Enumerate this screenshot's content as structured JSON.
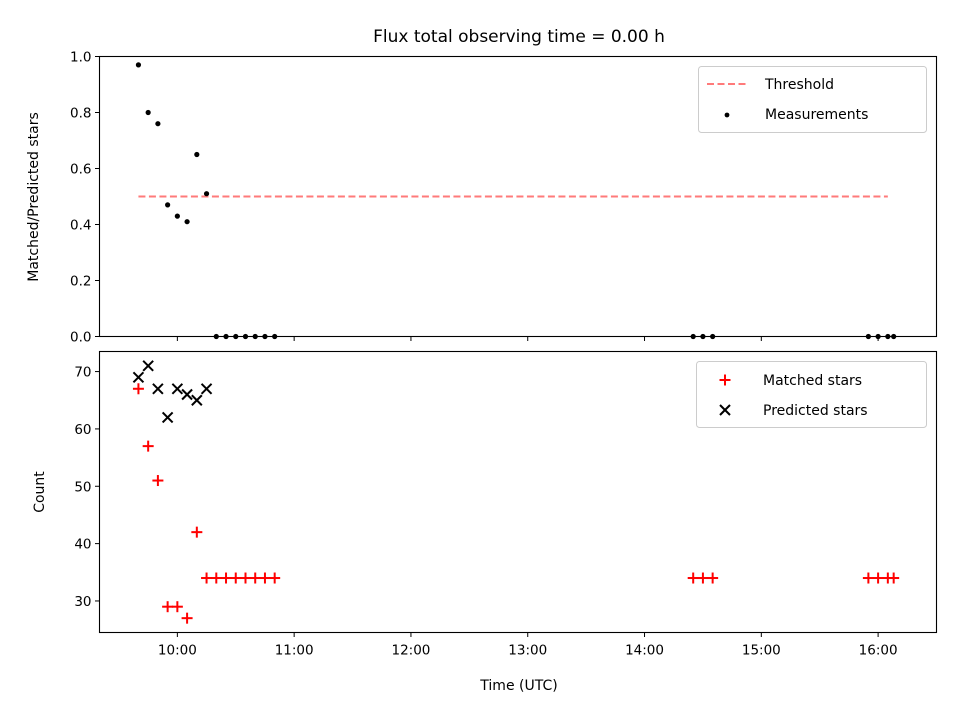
{
  "title": "Flux total observing time = 0.00 h",
  "colors": {
    "threshold": "#ff7a7a",
    "measurements": "#000000",
    "matched": "#ff0000",
    "predicted": "#000000"
  },
  "chart_data": [
    {
      "type": "scatter",
      "panel": "top",
      "title": "Flux total observing time = 0.00 h",
      "xlabel": "",
      "ylabel": "Matched/Predicted stars",
      "x_unit": "time of day (UTC)",
      "xlim": [
        "09:20",
        "16:30"
      ],
      "ylim": [
        0.0,
        1.0
      ],
      "x_ticks": [
        "10:00",
        "11:00",
        "12:00",
        "13:00",
        "14:00",
        "15:00",
        "16:00"
      ],
      "y_ticks": [
        "0.0",
        "0.2",
        "0.4",
        "0.6",
        "0.8",
        "1.0"
      ],
      "legend": "top-right",
      "threshold": {
        "name": "Threshold",
        "y": 0.5,
        "x": [
          "09:40",
          "16:05"
        ],
        "style": "dashed"
      },
      "series": [
        {
          "name": "Measurements",
          "marker": "dot",
          "points": [
            {
              "x": "09:40",
              "y": 0.97
            },
            {
              "x": "09:45",
              "y": 0.8
            },
            {
              "x": "09:50",
              "y": 0.76
            },
            {
              "x": "09:55",
              "y": 0.47
            },
            {
              "x": "10:00",
              "y": 0.43
            },
            {
              "x": "10:05",
              "y": 0.41
            },
            {
              "x": "10:10",
              "y": 0.65
            },
            {
              "x": "10:15",
              "y": 0.51
            },
            {
              "x": "10:20",
              "y": 0.0
            },
            {
              "x": "10:25",
              "y": 0.0
            },
            {
              "x": "10:30",
              "y": 0.0
            },
            {
              "x": "10:35",
              "y": 0.0
            },
            {
              "x": "10:40",
              "y": 0.0
            },
            {
              "x": "10:45",
              "y": 0.0
            },
            {
              "x": "10:50",
              "y": 0.0
            },
            {
              "x": "14:25",
              "y": 0.0
            },
            {
              "x": "14:30",
              "y": 0.0
            },
            {
              "x": "14:35",
              "y": 0.0
            },
            {
              "x": "15:55",
              "y": 0.0
            },
            {
              "x": "16:00",
              "y": 0.0
            },
            {
              "x": "16:05",
              "y": 0.0
            },
            {
              "x": "16:08",
              "y": 0.0
            }
          ]
        }
      ]
    },
    {
      "type": "scatter",
      "panel": "bottom",
      "xlabel": "Time (UTC)",
      "ylabel": "Count",
      "x_unit": "time of day (UTC)",
      "xlim": [
        "09:20",
        "16:30"
      ],
      "ylim": [
        24.5,
        73.5
      ],
      "x_ticks": [
        "10:00",
        "11:00",
        "12:00",
        "13:00",
        "14:00",
        "15:00",
        "16:00"
      ],
      "y_ticks": [
        "30",
        "40",
        "50",
        "60",
        "70"
      ],
      "legend": "top-right",
      "series": [
        {
          "name": "Matched stars",
          "marker": "plus",
          "points": [
            {
              "x": "09:40",
              "y": 67
            },
            {
              "x": "09:45",
              "y": 57
            },
            {
              "x": "09:50",
              "y": 51
            },
            {
              "x": "09:55",
              "y": 29
            },
            {
              "x": "10:00",
              "y": 29
            },
            {
              "x": "10:05",
              "y": 27
            },
            {
              "x": "10:10",
              "y": 42
            },
            {
              "x": "10:15",
              "y": 34
            },
            {
              "x": "10:20",
              "y": 34
            },
            {
              "x": "10:25",
              "y": 34
            },
            {
              "x": "10:30",
              "y": 34
            },
            {
              "x": "10:35",
              "y": 34
            },
            {
              "x": "10:40",
              "y": 34
            },
            {
              "x": "10:45",
              "y": 34
            },
            {
              "x": "10:50",
              "y": 34
            },
            {
              "x": "14:25",
              "y": 34
            },
            {
              "x": "14:30",
              "y": 34
            },
            {
              "x": "14:35",
              "y": 34
            },
            {
              "x": "15:55",
              "y": 34
            },
            {
              "x": "16:00",
              "y": 34
            },
            {
              "x": "16:05",
              "y": 34
            },
            {
              "x": "16:08",
              "y": 34
            }
          ]
        },
        {
          "name": "Predicted stars",
          "marker": "x",
          "points": [
            {
              "x": "09:40",
              "y": 69
            },
            {
              "x": "09:45",
              "y": 71
            },
            {
              "x": "09:50",
              "y": 67
            },
            {
              "x": "09:55",
              "y": 62
            },
            {
              "x": "10:00",
              "y": 67
            },
            {
              "x": "10:05",
              "y": 66
            },
            {
              "x": "10:10",
              "y": 65
            },
            {
              "x": "10:15",
              "y": 67
            }
          ]
        }
      ]
    }
  ]
}
